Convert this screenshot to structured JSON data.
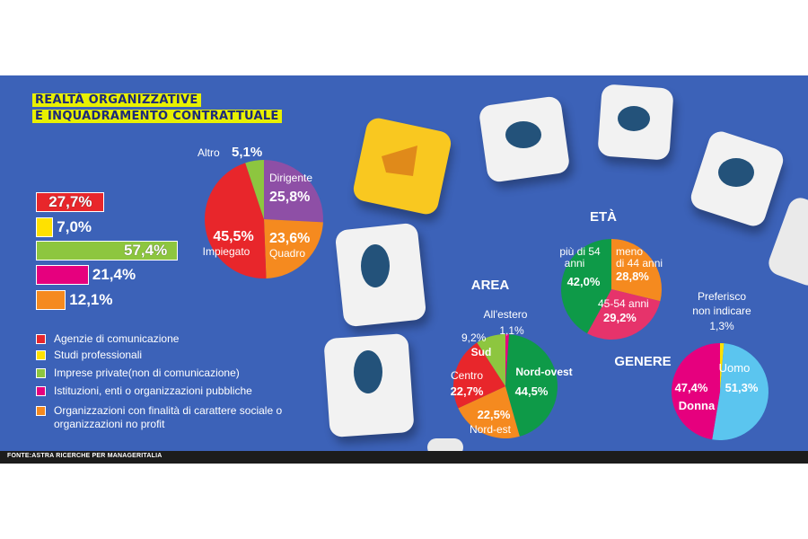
{
  "title_line1": "REALTÀ ORGANIZZATIVE",
  "title_line2": "E INQUADRAMENTO CONTRATTUALE",
  "source": "FONTE:ASTRA RICERCHE PER MANAGERITALIA",
  "colors": {
    "background": "#3c62b8",
    "red": "#e8262b",
    "yellow": "#ffe100",
    "green": "#8dc63f",
    "magenta": "#e6007e",
    "orange": "#f58a1f",
    "purple": "#8e4fa6",
    "darkgreen": "#0e9a48",
    "lightblue": "#5bc5ef"
  },
  "chart_data": [
    {
      "type": "bar",
      "orientation": "horizontal",
      "categories": [
        "Agenzie di comunicazione",
        "Studi professionali",
        "Imprese private(non di comunicazione)",
        "Istituzioni, enti o organizzazioni pubbliche",
        "Organizzazioni con finalità di carattere sociale o organizzazioni no profit"
      ],
      "values": [
        27.7,
        7.0,
        57.4,
        21.4,
        12.1
      ],
      "labels": [
        "27,7%",
        "7,0%",
        "57,4%",
        "21,4%",
        "12,1%"
      ],
      "colors": [
        "#e8262b",
        "#ffe100",
        "#8dc63f",
        "#e6007e",
        "#f58a1f"
      ]
    },
    {
      "type": "pie",
      "title": "",
      "slices": [
        {
          "name": "Dirigente",
          "value": 25.8,
          "label": "25,8%",
          "color": "#8e4fa6"
        },
        {
          "name": "Quadro",
          "value": 23.6,
          "label": "23,6%",
          "color": "#f58a1f"
        },
        {
          "name": "Impiegato",
          "value": 45.5,
          "label": "45,5%",
          "color": "#e8262b"
        },
        {
          "name": "Altro",
          "value": 5.1,
          "label": "5,1%",
          "color": "#8dc63f"
        }
      ]
    },
    {
      "type": "pie",
      "title": "ETÀ",
      "slices": [
        {
          "name": "meno di 44 anni",
          "value": 28.8,
          "label": "28,8%",
          "color": "#f58a1f"
        },
        {
          "name": "45-54 anni",
          "value": 29.2,
          "label": "29,2%",
          "color": "#e6336b"
        },
        {
          "name": "più di 54 anni",
          "value": 42.0,
          "label": "42,0%",
          "color": "#0e9a48"
        }
      ]
    },
    {
      "type": "pie",
      "title": "AREA",
      "slices": [
        {
          "name": "All'estero",
          "value": 1.1,
          "label": "1,1%",
          "color": "#e6007e"
        },
        {
          "name": "Nord-ovest",
          "value": 44.5,
          "label": "44,5%",
          "color": "#0e9a48"
        },
        {
          "name": "Nord-est",
          "value": 22.5,
          "label": "22,5%",
          "color": "#f58a1f"
        },
        {
          "name": "Centro",
          "value": 22.7,
          "label": "22,7%",
          "color": "#e8262b"
        },
        {
          "name": "Sud",
          "value": 9.2,
          "label": "9,2%",
          "color": "#8dc63f"
        }
      ]
    },
    {
      "type": "pie",
      "title": "GENERE",
      "slices": [
        {
          "name": "Preferisco non indicare",
          "value": 1.3,
          "label": "1,3%",
          "color": "#ffe100"
        },
        {
          "name": "Uomo",
          "value": 51.3,
          "label": "51,3%",
          "color": "#5bc5ef"
        },
        {
          "name": "Donna",
          "value": 47.4,
          "label": "47,4%",
          "color": "#e6007e"
        }
      ]
    }
  ]
}
